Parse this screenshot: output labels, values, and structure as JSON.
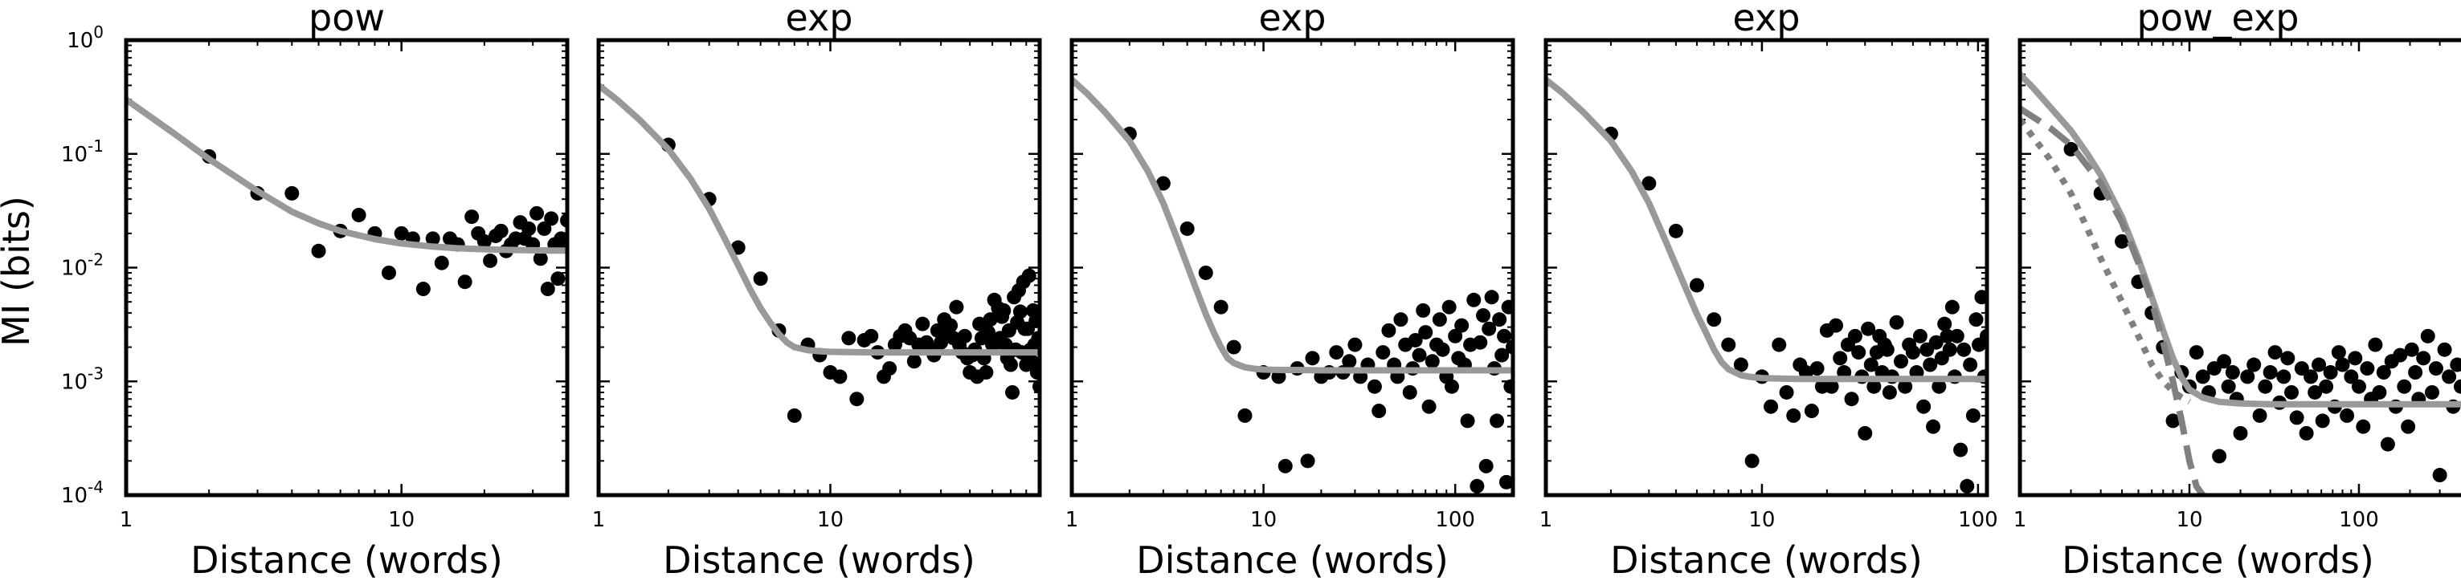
{
  "figure": {
    "ylabel": "MI (bits)",
    "panels": [
      {
        "title": "pow",
        "xlabel": "Distance (words)"
      },
      {
        "title": "exp",
        "xlabel": "Distance (words)"
      },
      {
        "title": "exp",
        "xlabel": "Distance (words)"
      },
      {
        "title": "exp",
        "xlabel": "Distance (words)"
      },
      {
        "title": "pow_exp",
        "xlabel": "Distance (words)"
      }
    ]
  },
  "chart_data": [
    {
      "type": "scatter",
      "title": "pow",
      "xlabel": "Distance (words)",
      "ylabel": "MI (bits)",
      "xscale": "log",
      "yscale": "log",
      "xlim": [
        1,
        40
      ],
      "ylim": [
        0.0001,
        1
      ],
      "xticks": [
        1,
        10
      ],
      "yticks": [
        0.0001,
        0.001,
        0.01,
        0.1,
        1
      ],
      "grid": false,
      "colors": {
        "points": "#000000",
        "fit": "#999999"
      },
      "points": {
        "x": [
          2,
          3,
          4,
          5,
          6,
          7,
          8,
          9,
          10,
          11,
          12,
          13,
          14,
          15,
          16,
          17,
          18,
          19,
          20,
          21,
          22,
          23,
          24,
          25,
          26,
          27,
          28,
          29,
          30,
          31,
          32,
          33,
          34,
          35,
          36,
          37,
          38,
          39,
          40
        ],
        "y": [
          0.095,
          0.045,
          0.045,
          0.014,
          0.021,
          0.029,
          0.02,
          0.009,
          0.02,
          0.018,
          0.0065,
          0.018,
          0.011,
          0.018,
          0.016,
          0.0075,
          0.028,
          0.02,
          0.017,
          0.0115,
          0.019,
          0.021,
          0.014,
          0.016,
          0.018,
          0.025,
          0.018,
          0.022,
          0.016,
          0.03,
          0.012,
          0.022,
          0.0065,
          0.027,
          0.016,
          0.008,
          0.018,
          0.017,
          0.026
        ]
      },
      "fits": [
        {
          "style": "solid",
          "x": [
            1,
            1.5,
            2,
            3,
            4,
            5,
            6,
            8,
            10,
            13,
            16,
            20,
            25,
            30,
            35,
            40
          ],
          "y": [
            0.3,
            0.15,
            0.09,
            0.047,
            0.031,
            0.0245,
            0.021,
            0.0178,
            0.0163,
            0.0153,
            0.0148,
            0.0145,
            0.0143,
            0.0142,
            0.0141,
            0.0141
          ]
        }
      ]
    },
    {
      "type": "scatter",
      "title": "exp",
      "xlabel": "Distance (words)",
      "xscale": "log",
      "yscale": "log",
      "xlim": [
        1,
        80
      ],
      "ylim": [
        0.0001,
        1
      ],
      "xticks": [
        1,
        10
      ],
      "yticks": [
        0.0001,
        0.001,
        0.01,
        0.1,
        1
      ],
      "grid": false,
      "colors": {
        "points": "#000000",
        "fit": "#999999"
      },
      "points": {
        "x": [
          2,
          3,
          4,
          5,
          6,
          7,
          8,
          9,
          10,
          11,
          12,
          13,
          14,
          15,
          16,
          17,
          18,
          19,
          20,
          21,
          22,
          23,
          24,
          25,
          26,
          27,
          28,
          29,
          30,
          31,
          32,
          33,
          34,
          35,
          36,
          37,
          38,
          39,
          40,
          41,
          42,
          43,
          44,
          45,
          46,
          47,
          48,
          49,
          50,
          51,
          52,
          53,
          54,
          55,
          56,
          57,
          58,
          59,
          60,
          61,
          62,
          63,
          64,
          65,
          66,
          67,
          68,
          69,
          70,
          71,
          72,
          73,
          74,
          75,
          76,
          77,
          78,
          79,
          80
        ],
        "y": [
          0.12,
          0.04,
          0.015,
          0.008,
          0.0028,
          0.0005,
          0.0021,
          0.0017,
          0.0012,
          0.0011,
          0.0024,
          0.0007,
          0.0023,
          0.0025,
          0.0018,
          0.0011,
          0.0013,
          0.0021,
          0.0025,
          0.0028,
          0.0024,
          0.0015,
          0.0021,
          0.0032,
          0.0022,
          0.0019,
          0.0017,
          0.0028,
          0.0022,
          0.0035,
          0.0026,
          0.0031,
          0.0024,
          0.0045,
          0.0021,
          0.0018,
          0.0025,
          0.0016,
          0.0012,
          0.0017,
          0.0019,
          0.0011,
          0.0032,
          0.0024,
          0.0016,
          0.0012,
          0.0027,
          0.0035,
          0.0021,
          0.0052,
          0.0022,
          0.0044,
          0.0024,
          0.0037,
          0.0042,
          0.0021,
          0.0016,
          0.0028,
          0.0014,
          0.0008,
          0.0055,
          0.0019,
          0.0033,
          0.0063,
          0.0041,
          0.0018,
          0.0075,
          0.0029,
          0.0014,
          0.0029,
          0.0085,
          0.0019,
          0.0015,
          0.0042,
          0.0021,
          0.0034,
          0.0012,
          0.0024,
          0.0009
        ]
      },
      "fits": [
        {
          "style": "solid",
          "x": [
            1,
            1.2,
            1.5,
            2,
            2.5,
            3,
            3.5,
            4,
            4.5,
            5,
            5.5,
            6,
            6.5,
            7,
            8,
            9,
            10,
            12,
            15,
            20,
            30,
            50,
            80
          ],
          "y": [
            0.4,
            0.3,
            0.2,
            0.11,
            0.06,
            0.033,
            0.018,
            0.0105,
            0.0065,
            0.0044,
            0.0033,
            0.0026,
            0.0022,
            0.002,
            0.00188,
            0.00184,
            0.00182,
            0.00181,
            0.0018,
            0.0018,
            0.0018,
            0.0018,
            0.0018
          ]
        }
      ]
    },
    {
      "type": "scatter",
      "title": "exp",
      "xlabel": "Distance (words)",
      "xscale": "log",
      "yscale": "log",
      "xlim": [
        1,
        200
      ],
      "ylim": [
        0.0001,
        1
      ],
      "xticks": [
        1,
        10,
        100
      ],
      "yticks": [
        0.0001,
        0.001,
        0.01,
        0.1,
        1
      ],
      "grid": false,
      "colors": {
        "points": "#000000",
        "fit": "#999999"
      },
      "points": {
        "x": [
          2,
          3,
          4,
          5,
          6,
          7,
          8,
          10,
          12,
          13,
          15,
          17,
          18,
          20,
          22,
          24,
          26,
          28,
          30,
          32,
          35,
          38,
          40,
          42,
          45,
          48,
          50,
          52,
          55,
          58,
          60,
          62,
          65,
          68,
          70,
          73,
          76,
          80,
          83,
          86,
          90,
          93,
          96,
          100,
          104,
          108,
          112,
          116,
          120,
          125,
          130,
          135,
          140,
          145,
          150,
          155,
          160,
          165,
          170,
          175,
          180,
          185,
          190,
          195,
          200
        ],
        "y": [
          0.15,
          0.055,
          0.022,
          0.009,
          0.0045,
          0.002,
          0.0005,
          0.0012,
          0.0011,
          0.00018,
          0.0013,
          0.0002,
          0.0016,
          0.0011,
          0.0012,
          0.0018,
          0.0012,
          0.0015,
          0.0021,
          0.0011,
          0.0014,
          0.0009,
          0.00055,
          0.0018,
          0.0028,
          0.0014,
          0.0011,
          0.0035,
          0.0021,
          0.0008,
          0.0013,
          0.0023,
          0.0017,
          0.0042,
          0.0027,
          0.0006,
          0.0015,
          0.0021,
          0.0035,
          0.0019,
          0.0011,
          0.0045,
          0.0009,
          0.0025,
          0.0016,
          0.0031,
          0.0014,
          0.00045,
          0.0021,
          0.0052,
          0.00012,
          0.0022,
          0.0038,
          0.00018,
          0.0029,
          0.0055,
          0.0013,
          0.00045,
          0.0035,
          0.0017,
          0.0025,
          0.00013,
          0.0045,
          0.0009,
          0.002
        ]
      },
      "fits": [
        {
          "style": "solid",
          "x": [
            1,
            1.2,
            1.5,
            2,
            2.5,
            3,
            3.5,
            4,
            4.5,
            5,
            5.5,
            6,
            6.5,
            7,
            8,
            9,
            10,
            12,
            15,
            20,
            30,
            50,
            100,
            200
          ],
          "y": [
            0.45,
            0.34,
            0.23,
            0.13,
            0.07,
            0.037,
            0.019,
            0.0105,
            0.0062,
            0.0039,
            0.0027,
            0.002,
            0.0016,
            0.00145,
            0.00133,
            0.00129,
            0.00127,
            0.00126,
            0.00126,
            0.00125,
            0.00125,
            0.00125,
            0.00125,
            0.00125
          ]
        }
      ]
    },
    {
      "type": "scatter",
      "title": "exp",
      "xlabel": "Distance (words)",
      "xscale": "log",
      "yscale": "log",
      "xlim": [
        1,
        110
      ],
      "ylim": [
        0.0001,
        1
      ],
      "xticks": [
        1,
        10,
        100
      ],
      "yticks": [
        0.0001,
        0.001,
        0.01,
        0.1,
        1
      ],
      "grid": false,
      "colors": {
        "points": "#000000",
        "fit": "#999999"
      },
      "points": {
        "x": [
          2,
          3,
          4,
          5,
          6,
          7,
          8,
          9,
          10,
          11,
          12,
          13,
          14,
          15,
          16,
          17,
          18,
          19,
          20,
          21,
          22,
          23,
          24,
          25,
          26,
          27,
          28,
          29,
          30,
          31,
          32,
          33,
          34,
          35,
          36,
          37,
          38,
          39,
          40,
          42,
          44,
          46,
          48,
          50,
          52,
          54,
          56,
          58,
          60,
          62,
          64,
          66,
          68,
          70,
          72,
          74,
          76,
          78,
          80,
          83,
          86,
          89,
          92,
          95,
          98,
          101,
          104,
          107,
          110
        ],
        "y": [
          0.15,
          0.055,
          0.021,
          0.007,
          0.0035,
          0.0021,
          0.0014,
          0.0002,
          0.0011,
          0.0006,
          0.0021,
          0.0008,
          0.0005,
          0.0014,
          0.0012,
          0.00055,
          0.0013,
          0.0009,
          0.0028,
          0.0009,
          0.0031,
          0.0016,
          0.0012,
          0.0021,
          0.0007,
          0.0025,
          0.0018,
          0.0011,
          0.00035,
          0.0029,
          0.0014,
          0.0009,
          0.0018,
          0.0025,
          0.0012,
          0.0021,
          0.0019,
          0.0008,
          0.0011,
          0.0033,
          0.0015,
          0.0009,
          0.0021,
          0.0018,
          0.0012,
          0.0025,
          0.0006,
          0.0019,
          0.0014,
          0.0004,
          0.0022,
          0.0009,
          0.0016,
          0.0032,
          0.0025,
          0.0019,
          0.0045,
          0.0011,
          0.0025,
          0.00025,
          0.0019,
          0.00012,
          0.0014,
          0.0005,
          0.0035,
          0.0021,
          0.0055,
          0.0011,
          0.0025
        ]
      },
      "fits": [
        {
          "style": "solid",
          "x": [
            1,
            1.2,
            1.5,
            2,
            2.5,
            3,
            3.5,
            4,
            4.5,
            5,
            5.5,
            6,
            6.5,
            7,
            8,
            9,
            10,
            12,
            15,
            20,
            30,
            50,
            110
          ],
          "y": [
            0.45,
            0.34,
            0.23,
            0.13,
            0.07,
            0.037,
            0.019,
            0.0105,
            0.0062,
            0.0039,
            0.0027,
            0.0019,
            0.00148,
            0.00128,
            0.00113,
            0.00109,
            0.00107,
            0.00106,
            0.00105,
            0.00105,
            0.00105,
            0.00105,
            0.00105
          ]
        }
      ]
    },
    {
      "type": "scatter",
      "title": "pow_exp",
      "xlabel": "Distance (words)",
      "xscale": "log",
      "yscale": "log",
      "xlim": [
        1,
        400
      ],
      "ylim": [
        0.0001,
        1
      ],
      "xticks": [
        1,
        10,
        100
      ],
      "yticks": [
        0.0001,
        0.001,
        0.01,
        0.1,
        1
      ],
      "grid": false,
      "colors": {
        "points": "#000000",
        "fit": "#999999",
        "component": "#808080"
      },
      "points": {
        "x": [
          2,
          3,
          4,
          5,
          6,
          7,
          8,
          9,
          10,
          11,
          12,
          13,
          14,
          15,
          16,
          17,
          18,
          19,
          20,
          22,
          24,
          26,
          28,
          30,
          32,
          34,
          36,
          38,
          40,
          43,
          46,
          49,
          52,
          55,
          58,
          61,
          64,
          68,
          72,
          76,
          80,
          85,
          90,
          95,
          100,
          106,
          112,
          118,
          125,
          132,
          140,
          148,
          156,
          165,
          175,
          185,
          195,
          205,
          215,
          225,
          240,
          255,
          270,
          285,
          300,
          320,
          340,
          360,
          380,
          400
        ],
        "y": [
          0.11,
          0.045,
          0.017,
          0.0075,
          0.004,
          0.002,
          0.00045,
          0.0012,
          0.0009,
          0.0018,
          0.0011,
          0.0008,
          0.0013,
          0.00022,
          0.0015,
          0.0009,
          0.0012,
          0.0007,
          0.00035,
          0.0011,
          0.0014,
          0.0005,
          0.0009,
          0.0012,
          0.0018,
          0.00065,
          0.0011,
          0.0016,
          0.0008,
          0.00048,
          0.0013,
          0.00035,
          0.0011,
          0.0008,
          0.0014,
          0.00045,
          0.0009,
          0.0012,
          0.0006,
          0.0018,
          0.0014,
          0.0005,
          0.0011,
          0.0016,
          0.0009,
          0.0004,
          0.0013,
          0.0007,
          0.0021,
          0.0008,
          0.0012,
          0.00028,
          0.0015,
          0.0006,
          0.0017,
          0.0009,
          0.0004,
          0.0019,
          0.0012,
          0.0007,
          0.0016,
          0.0025,
          0.0008,
          0.0013,
          0.00015,
          0.0019,
          0.0011,
          0.0006,
          0.0014,
          0.0009
        ]
      },
      "fits": [
        {
          "style": "solid",
          "x": [
            1,
            1.2,
            1.5,
            2,
            2.5,
            3,
            4,
            5,
            6,
            7,
            8,
            9,
            10,
            12,
            15,
            20,
            30,
            50,
            100,
            200,
            400
          ],
          "y": [
            0.5,
            0.38,
            0.26,
            0.16,
            0.1,
            0.065,
            0.028,
            0.012,
            0.0055,
            0.0028,
            0.0016,
            0.00108,
            0.00085,
            0.00072,
            0.00066,
            0.00064,
            0.00063,
            0.00063,
            0.00063,
            0.00063,
            0.00063
          ]
        },
        {
          "style": "dashed",
          "x": [
            1,
            1.5,
            2,
            3,
            4,
            5,
            6,
            7,
            8,
            9,
            10,
            11,
            12
          ],
          "y": [
            0.25,
            0.17,
            0.12,
            0.055,
            0.025,
            0.011,
            0.005,
            0.0022,
            0.001,
            0.00045,
            0.0002,
            0.00012,
            0.0001
          ]
        },
        {
          "style": "dotted",
          "x": [
            1,
            1.5,
            2,
            2.5,
            3,
            4,
            5,
            6,
            7,
            8,
            9,
            10
          ],
          "y": [
            0.2,
            0.09,
            0.045,
            0.022,
            0.012,
            0.005,
            0.0025,
            0.0014,
            0.001,
            0.00082,
            0.00072,
            0.00066
          ]
        }
      ]
    }
  ]
}
